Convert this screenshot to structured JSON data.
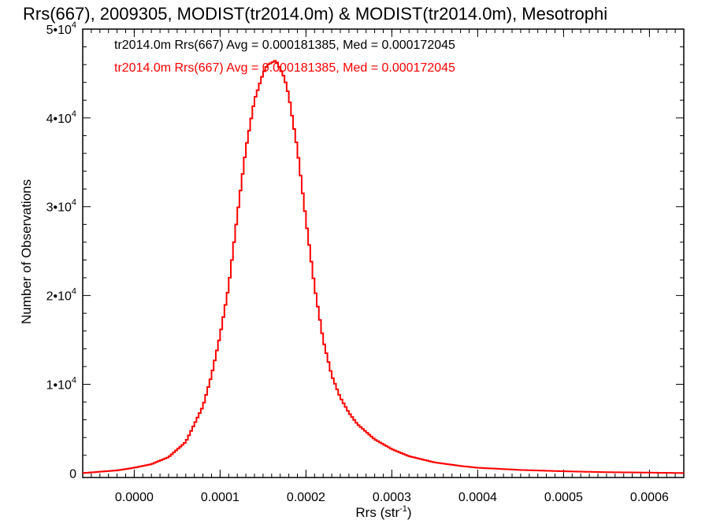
{
  "chart_data": {
    "type": "line",
    "title": "Rrs(667), 2009305, MODIST(tr2014.0m) & MODIST(tr2014.0m), Mesotrophi",
    "xlabel": "Rrs (str",
    "xlabel_sup": "-1",
    "xlabel_end": ")",
    "ylabel": "Number of Observations",
    "xlim": [
      -6e-05,
      0.00064
    ],
    "ylim": [
      -500,
      50000
    ],
    "grid": false,
    "step_style": "histogram",
    "x_ticks": [
      {
        "value": 0.0,
        "label": "0.0000"
      },
      {
        "value": 0.0001,
        "label": "0.0001"
      },
      {
        "value": 0.0002,
        "label": "0.0002"
      },
      {
        "value": 0.0003,
        "label": "0.0003"
      },
      {
        "value": 0.0004,
        "label": "0.0004"
      },
      {
        "value": 0.0005,
        "label": "0.0005"
      },
      {
        "value": 0.0006,
        "label": "0.0006"
      }
    ],
    "y_ticks": [
      {
        "value": 0,
        "mant": "0",
        "exp": ""
      },
      {
        "value": 10000,
        "mant": "1•10",
        "exp": "4"
      },
      {
        "value": 20000,
        "mant": "2•10",
        "exp": "4"
      },
      {
        "value": 30000,
        "mant": "3•10",
        "exp": "4"
      },
      {
        "value": 40000,
        "mant": "4•10",
        "exp": "4"
      },
      {
        "value": 50000,
        "mant": "5•10",
        "exp": "4"
      }
    ],
    "legend": [
      {
        "text": "tr2014.0m Rrs(667) Avg = 0.000181385, Med = 0.000172045",
        "color": "#000000"
      },
      {
        "text": "tr2014.0m Rrs(667) Avg = 0.000181385, Med = 0.000172045",
        "color": "#ff0000"
      }
    ],
    "series": [
      {
        "color": "#ff0000",
        "x": [
          -6e-05,
          -4e-05,
          -2e-05,
          0.0,
          2e-05,
          4e-05,
          6e-05,
          8e-05,
          9e-05,
          0.0001,
          0.00011,
          0.00012,
          0.00013,
          0.00014,
          0.00015,
          0.000155,
          0.00016,
          0.000165,
          0.00017,
          0.000175,
          0.00018,
          0.00019,
          0.0002,
          0.00021,
          0.00022,
          0.00023,
          0.00024,
          0.00025,
          0.00026,
          0.00028,
          0.0003,
          0.00032,
          0.00035,
          0.00038,
          0.0004,
          0.00045,
          0.0005,
          0.00055,
          0.0006,
          0.00064
        ],
        "y": [
          0,
          150,
          300,
          600,
          1000,
          1800,
          3500,
          7500,
          11000,
          15500,
          21000,
          29000,
          36500,
          42000,
          45000,
          46000,
          46200,
          46500,
          45500,
          44500,
          42500,
          36500,
          28500,
          21000,
          15000,
          11000,
          8500,
          6800,
          5500,
          3800,
          2700,
          1900,
          1200,
          800,
          600,
          350,
          200,
          100,
          50,
          0
        ]
      }
    ]
  }
}
